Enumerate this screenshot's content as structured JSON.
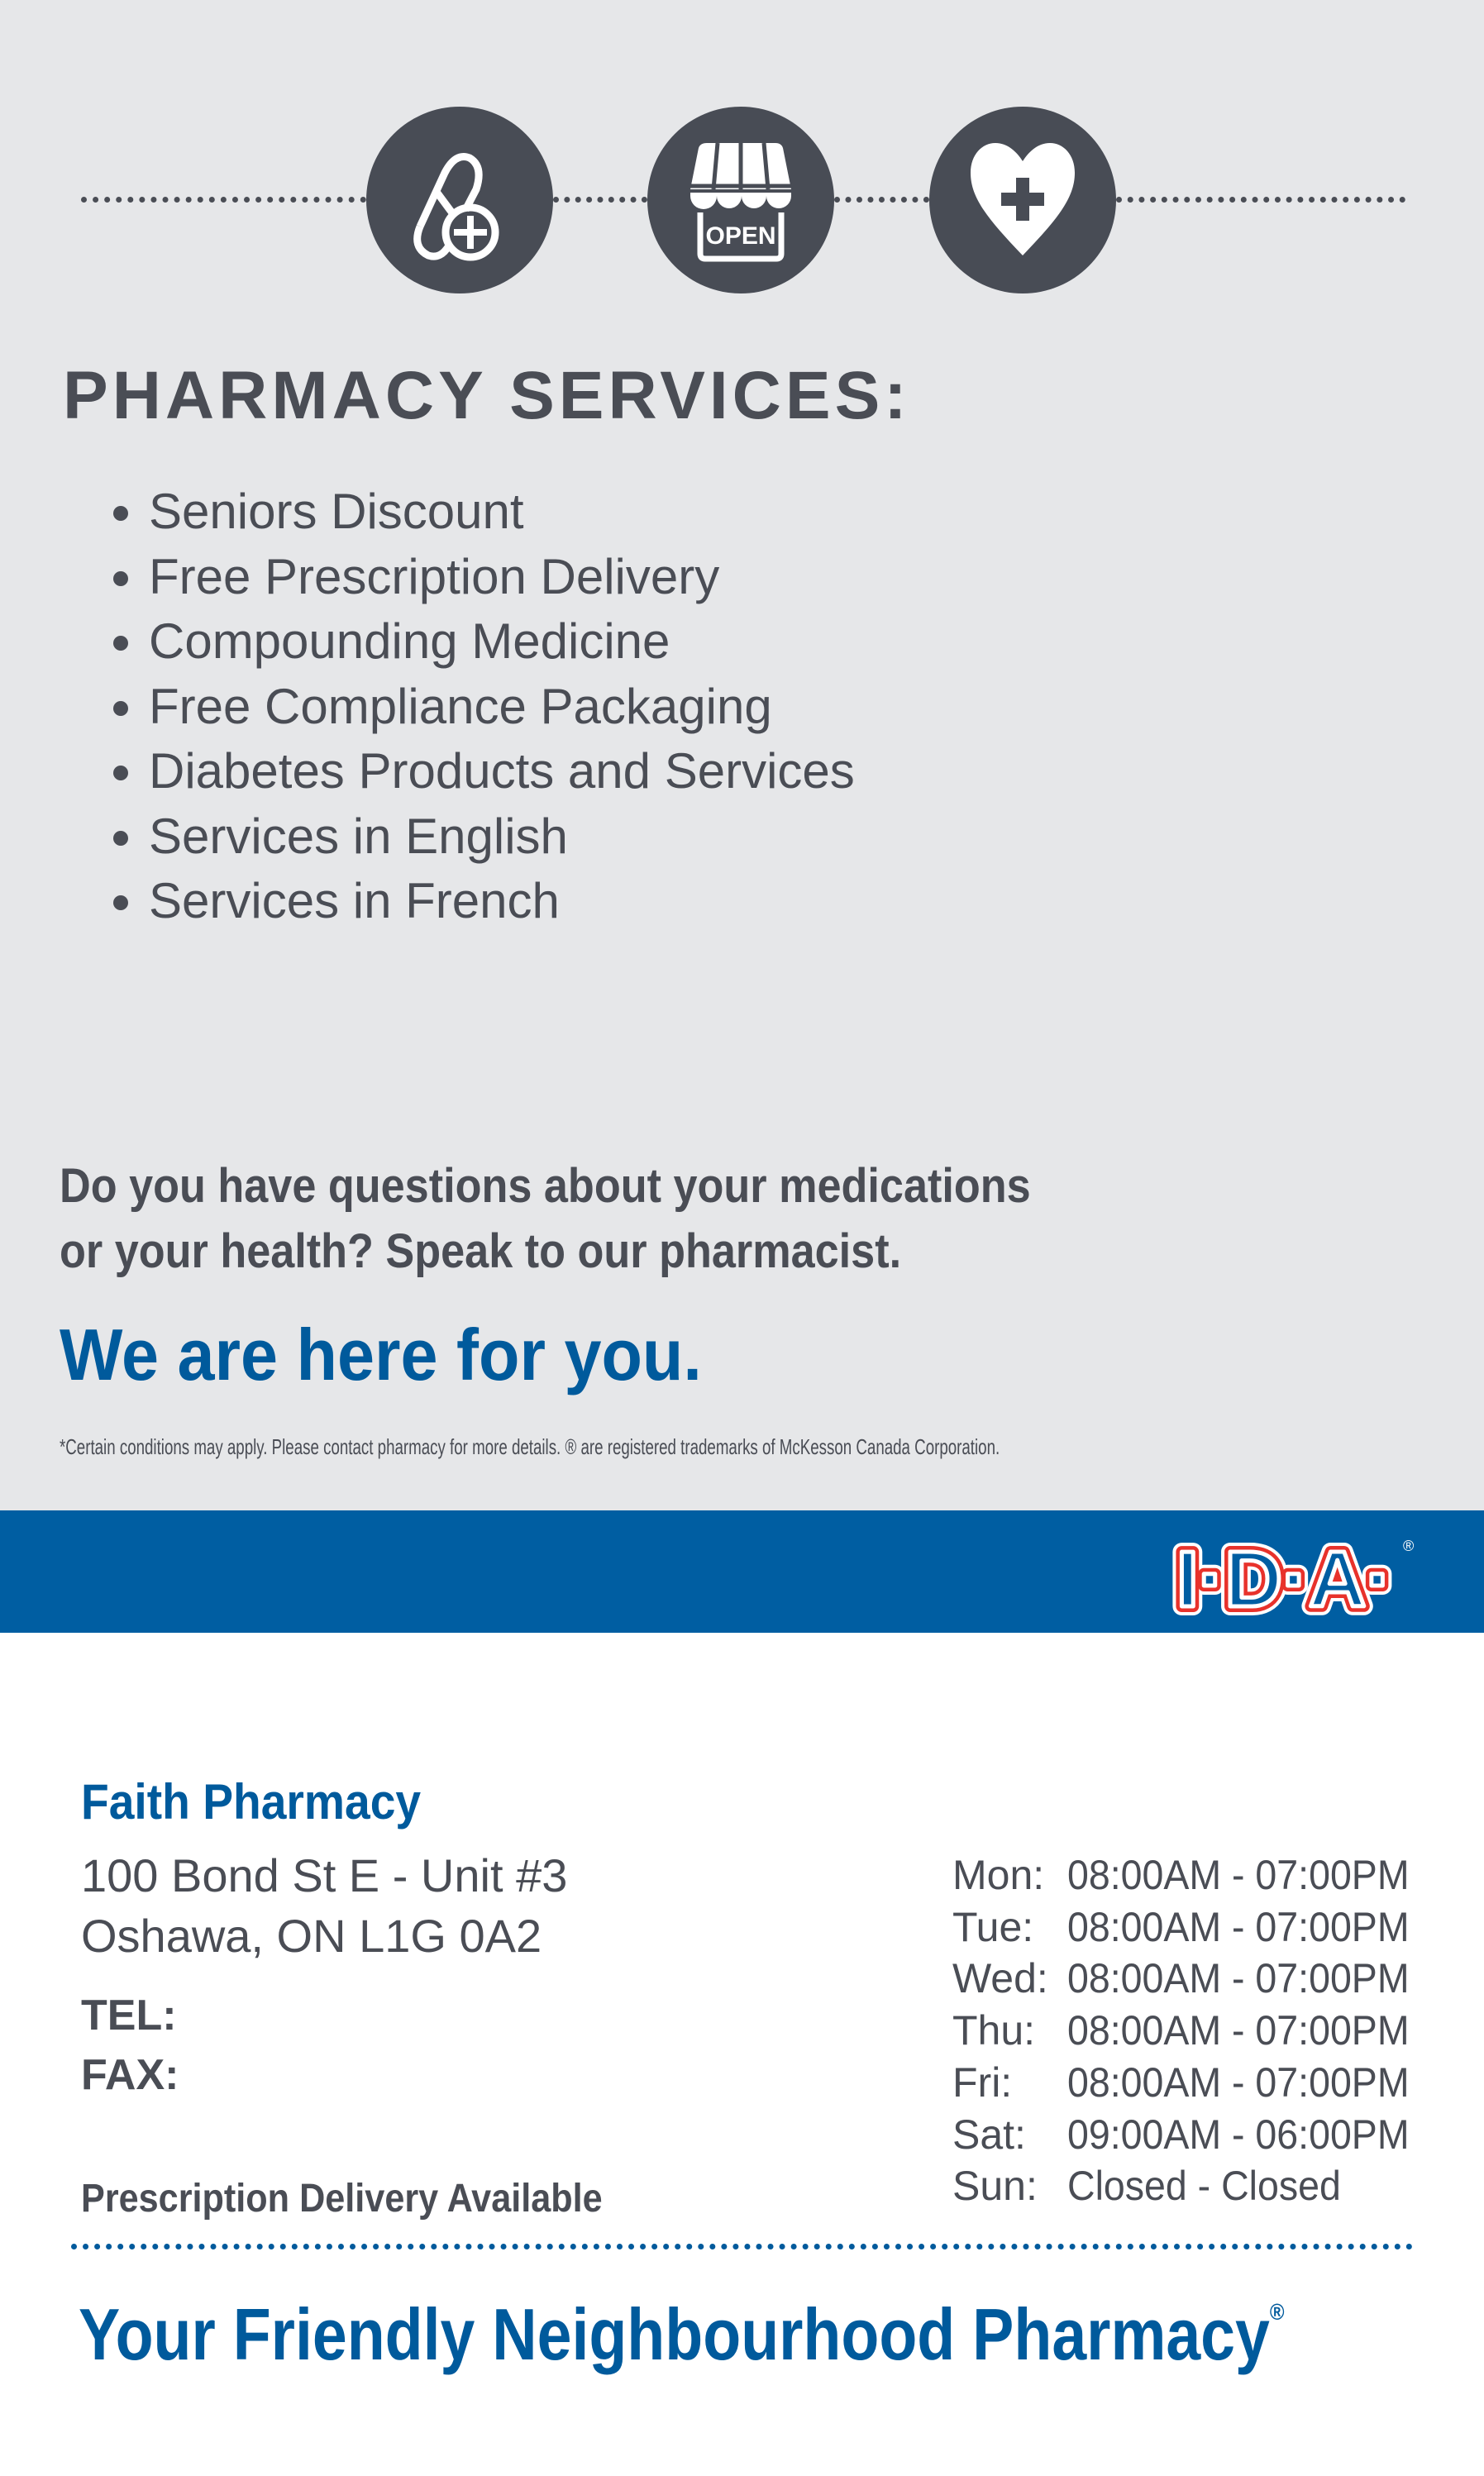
{
  "icons": [
    "pill-plus-icon",
    "open-store-icon",
    "heart-plus-icon"
  ],
  "icon_labels": {
    "open_sign": "OPEN"
  },
  "services": {
    "title": "PHARMACY SERVICES:",
    "items": [
      {
        "label": "Seniors Discount"
      },
      {
        "label": "Free Prescription Delivery"
      },
      {
        "label": "Compounding Medicine"
      },
      {
        "label": "Free Compliance Packaging"
      },
      {
        "label": "Diabetes Products and Services"
      },
      {
        "label": "Services in English"
      },
      {
        "label": "Services in French"
      }
    ]
  },
  "question": {
    "line1": "Do you have questions about your medications",
    "line2": "or your health? Speak to our pharmacist."
  },
  "here_for_you": "We are here for you.",
  "footnote": "*Certain conditions may apply. Please contact pharmacy for more details. ® are registered trademarks of McKesson Canada Corporation.",
  "brand": {
    "logo_text": "I·D·A",
    "blue": "#005ea2",
    "red": "#e8322b"
  },
  "store": {
    "name": "Faith Pharmacy",
    "address_line1": "100 Bond St E - Unit #3",
    "address_line2": "Oshawa, ON L1G 0A2",
    "tel_label": "TEL:",
    "fax_label": "FAX:",
    "delivery": "Prescription Delivery Available"
  },
  "hours": [
    {
      "day": "Mon:",
      "time": "08:00AM - 07:00PM"
    },
    {
      "day": "Tue:",
      "time": "08:00AM - 07:00PM"
    },
    {
      "day": "Wed:",
      "time": "08:00AM - 07:00PM"
    },
    {
      "day": "Thu:",
      "time": "08:00AM - 07:00PM"
    },
    {
      "day": "Fri:",
      "time": "08:00AM - 07:00PM"
    },
    {
      "day": "Sat:",
      "time": "09:00AM - 06:00PM"
    },
    {
      "day": "Sun:",
      "time": "Closed - Closed"
    }
  ],
  "tagline": "Your Friendly Neighbourhood Pharmacy",
  "tagline_mark": "®"
}
